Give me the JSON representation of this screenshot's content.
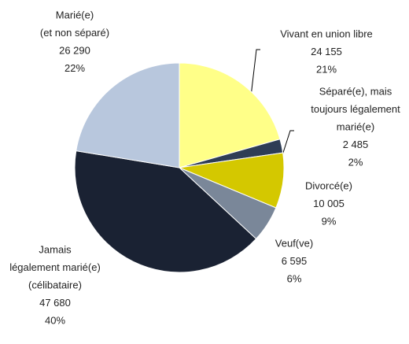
{
  "chart_data": {
    "type": "pie",
    "categories": [
      [
        "Vivant en union libre"
      ],
      [
        "Séparé(e), mais",
        "toujours légalement",
        "marié(e)"
      ],
      [
        "Divorcé(e)"
      ],
      [
        "Veuf(ve)"
      ],
      [
        "Jamais",
        "légalement marié(e)",
        "(célibataire)"
      ],
      [
        "Marié(e)",
        "(et non séparé)"
      ]
    ],
    "values": [
      24155,
      2485,
      10005,
      6595,
      47680,
      26290
    ],
    "value_labels": [
      "24 155",
      "2 485",
      "10 005",
      "6 595",
      "47 680",
      "26 290"
    ],
    "percentages": [
      21,
      2,
      9,
      6,
      40,
      22
    ],
    "percentage_labels": [
      "21%",
      "2%",
      "9%",
      "6%",
      "40%",
      "22%"
    ],
    "colors": [
      "#ffff88",
      "#2e3d55",
      "#d4c800",
      "#7a8799",
      "#1a2233",
      "#b8c7dd"
    ]
  }
}
